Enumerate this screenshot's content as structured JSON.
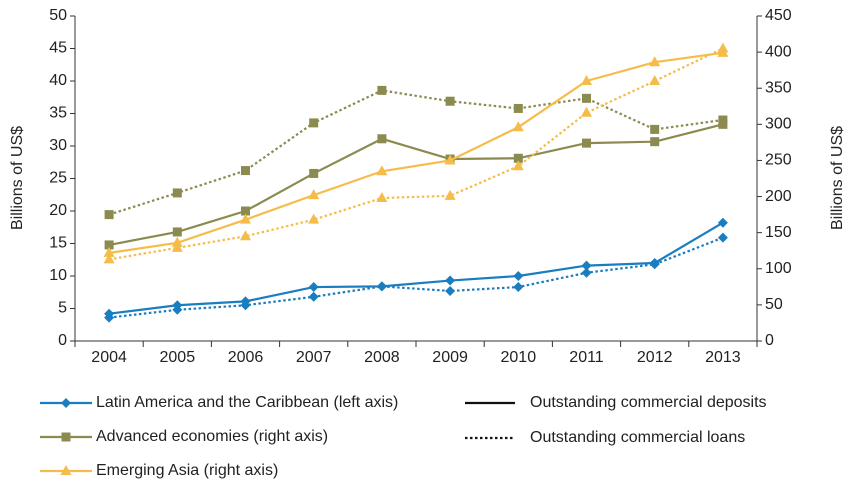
{
  "chart_data": {
    "type": "line",
    "categories": [
      "2004",
      "2005",
      "2006",
      "2007",
      "2008",
      "2009",
      "2010",
      "2011",
      "2012",
      "2013"
    ],
    "ylabel": "Billions of US$",
    "y2label": "Billions of US$",
    "ylim": [
      0,
      50
    ],
    "yticks": [
      0,
      5,
      10,
      15,
      20,
      25,
      30,
      35,
      40,
      45,
      50
    ],
    "y2lim": [
      0,
      450
    ],
    "y2ticks": [
      0,
      50,
      100,
      150,
      200,
      250,
      300,
      350,
      400,
      450
    ],
    "line_styles": {
      "deposits": {
        "label": "Outstanding commercial deposits",
        "dash": "solid"
      },
      "loans": {
        "label": "Outstanding commercial loans",
        "dash": "dotted"
      }
    },
    "series": [
      {
        "name": "Latin America and the Caribbean (left axis)",
        "color": "#1a7dc0",
        "marker": "diamond",
        "axis": "y",
        "deposits": [
          4.2,
          5.5,
          6.1,
          8.3,
          8.4,
          9.3,
          10.0,
          11.6,
          12.0,
          18.2
        ],
        "loans": [
          3.6,
          4.8,
          5.5,
          6.8,
          8.4,
          7.7,
          8.3,
          10.5,
          11.8,
          15.9
        ]
      },
      {
        "name": "Advanced economies (right axis)",
        "color": "#8b8a4f",
        "marker": "square",
        "axis": "y2",
        "deposits": [
          133,
          151,
          180,
          232,
          280,
          252,
          253,
          274,
          276,
          300
        ],
        "loans": [
          175,
          205,
          236,
          302,
          347,
          332,
          322,
          336,
          293,
          306
        ]
      },
      {
        "name": "Emerging Asia (right axis)",
        "color": "#f6bc4a",
        "marker": "triangle",
        "axis": "y2",
        "deposits": [
          122,
          136,
          168,
          202,
          235,
          250,
          296,
          360,
          386,
          399
        ],
        "loans": [
          113,
          129,
          145,
          168,
          198,
          201,
          242,
          316,
          360,
          405
        ]
      }
    ]
  }
}
